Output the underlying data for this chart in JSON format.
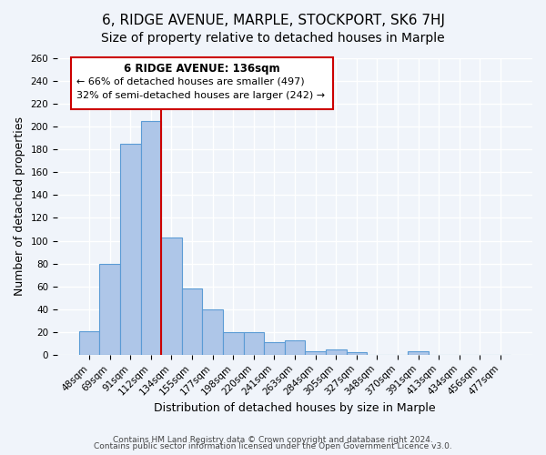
{
  "title": "6, RIDGE AVENUE, MARPLE, STOCKPORT, SK6 7HJ",
  "subtitle": "Size of property relative to detached houses in Marple",
  "xlabel": "Distribution of detached houses by size in Marple",
  "ylabel": "Number of detached properties",
  "bar_labels": [
    "48sqm",
    "69sqm",
    "91sqm",
    "112sqm",
    "134sqm",
    "155sqm",
    "177sqm",
    "198sqm",
    "220sqm",
    "241sqm",
    "263sqm",
    "284sqm",
    "305sqm",
    "327sqm",
    "348sqm",
    "370sqm",
    "391sqm",
    "413sqm",
    "434sqm",
    "456sqm",
    "477sqm"
  ],
  "bar_values": [
    21,
    80,
    185,
    205,
    103,
    58,
    40,
    20,
    20,
    11,
    13,
    3,
    5,
    2,
    0,
    0,
    3,
    0,
    0,
    0,
    0
  ],
  "bar_color": "#aec6e8",
  "bar_edge_color": "#5b9bd5",
  "vline_x": 4,
  "vline_color": "#cc0000",
  "ylim": [
    0,
    260
  ],
  "yticks": [
    0,
    20,
    40,
    60,
    80,
    100,
    120,
    140,
    160,
    180,
    200,
    220,
    240,
    260
  ],
  "annotation_title": "6 RIDGE AVENUE: 136sqm",
  "annotation_line1": "← 66% of detached houses are smaller (497)",
  "annotation_line2": "32% of semi-detached houses are larger (242) →",
  "annotation_box_color": "#cc0000",
  "footer_line1": "Contains HM Land Registry data © Crown copyright and database right 2024.",
  "footer_line2": "Contains public sector information licensed under the Open Government Licence v3.0.",
  "background_color": "#f0f4fa",
  "grid_color": "#ffffff",
  "title_fontsize": 11,
  "subtitle_fontsize": 10,
  "axis_label_fontsize": 9,
  "tick_fontsize": 7.5,
  "footer_fontsize": 6.5
}
